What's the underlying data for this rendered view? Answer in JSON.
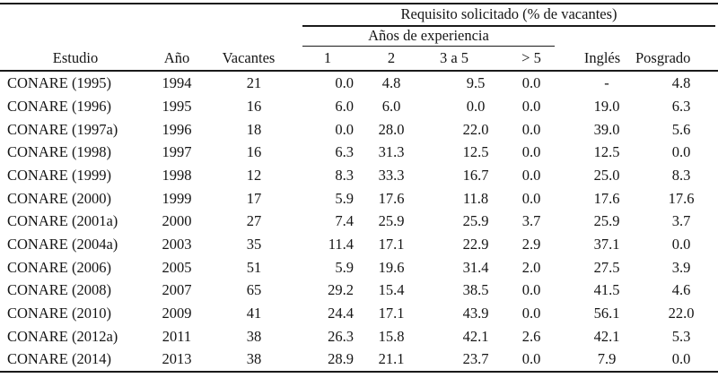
{
  "meta": {
    "background_color": "#ffffff",
    "text_color": "#151515",
    "rule_color": "#1a1a1a"
  },
  "table": {
    "group_header": "Requisito solicitado (% de vacantes)",
    "subgroup_header": "Años de experiencia",
    "columns": {
      "estudio": "Estudio",
      "ano": "Año",
      "vacantes": "Vacantes",
      "exp_1": "1",
      "exp_2": "2",
      "exp_3a5": "3 a 5",
      "exp_gt5": "> 5",
      "ingles": "Inglés",
      "posgrado": "Posgrado"
    },
    "rows": [
      {
        "estudio": "CONARE (1995)",
        "ano": "1994",
        "vacantes": "21",
        "exp_1": "0.0",
        "exp_2": "4.8",
        "exp_3a5": "9.5",
        "exp_gt5": "0.0",
        "ingles": "-",
        "posgrado": "4.8"
      },
      {
        "estudio": "CONARE (1996)",
        "ano": "1995",
        "vacantes": "16",
        "exp_1": "6.0",
        "exp_2": "6.0",
        "exp_3a5": "0.0",
        "exp_gt5": "0.0",
        "ingles": "19.0",
        "posgrado": "6.3"
      },
      {
        "estudio": "CONARE (1997a)",
        "ano": "1996",
        "vacantes": "18",
        "exp_1": "0.0",
        "exp_2": "28.0",
        "exp_3a5": "22.0",
        "exp_gt5": "0.0",
        "ingles": "39.0",
        "posgrado": "5.6"
      },
      {
        "estudio": "CONARE (1998)",
        "ano": "1997",
        "vacantes": "16",
        "exp_1": "6.3",
        "exp_2": "31.3",
        "exp_3a5": "12.5",
        "exp_gt5": "0.0",
        "ingles": "12.5",
        "posgrado": "0.0"
      },
      {
        "estudio": "CONARE (1999)",
        "ano": "1998",
        "vacantes": "12",
        "exp_1": "8.3",
        "exp_2": "33.3",
        "exp_3a5": "16.7",
        "exp_gt5": "0.0",
        "ingles": "25.0",
        "posgrado": "8.3"
      },
      {
        "estudio": "CONARE (2000)",
        "ano": "1999",
        "vacantes": "17",
        "exp_1": "5.9",
        "exp_2": "17.6",
        "exp_3a5": "11.8",
        "exp_gt5": "0.0",
        "ingles": "17.6",
        "posgrado": "17.6"
      },
      {
        "estudio": "CONARE (2001a)",
        "ano": "2000",
        "vacantes": "27",
        "exp_1": "7.4",
        "exp_2": "25.9",
        "exp_3a5": "25.9",
        "exp_gt5": "3.7",
        "ingles": "25.9",
        "posgrado": "3.7"
      },
      {
        "estudio": "CONARE (2004a)",
        "ano": "2003",
        "vacantes": "35",
        "exp_1": "11.4",
        "exp_2": "17.1",
        "exp_3a5": "22.9",
        "exp_gt5": "2.9",
        "ingles": "37.1",
        "posgrado": "0.0"
      },
      {
        "estudio": "CONARE (2006)",
        "ano": "2005",
        "vacantes": "51",
        "exp_1": "5.9",
        "exp_2": "19.6",
        "exp_3a5": "31.4",
        "exp_gt5": "2.0",
        "ingles": "27.5",
        "posgrado": "3.9"
      },
      {
        "estudio": "CONARE (2008)",
        "ano": "2007",
        "vacantes": "65",
        "exp_1": "29.2",
        "exp_2": "15.4",
        "exp_3a5": "38.5",
        "exp_gt5": "0.0",
        "ingles": "41.5",
        "posgrado": "4.6"
      },
      {
        "estudio": "CONARE (2010)",
        "ano": "2009",
        "vacantes": "41",
        "exp_1": "24.4",
        "exp_2": "17.1",
        "exp_3a5": "43.9",
        "exp_gt5": "0.0",
        "ingles": "56.1",
        "posgrado": "22.0"
      },
      {
        "estudio": "CONARE (2012a)",
        "ano": "2011",
        "vacantes": "38",
        "exp_1": "26.3",
        "exp_2": "15.8",
        "exp_3a5": "42.1",
        "exp_gt5": "2.6",
        "ingles": "42.1",
        "posgrado": "5.3"
      },
      {
        "estudio": "CONARE (2014)",
        "ano": "2013",
        "vacantes": "38",
        "exp_1": "28.9",
        "exp_2": "21.1",
        "exp_3a5": "23.7",
        "exp_gt5": "0.0",
        "ingles": "7.9",
        "posgrado": "0.0"
      }
    ]
  }
}
